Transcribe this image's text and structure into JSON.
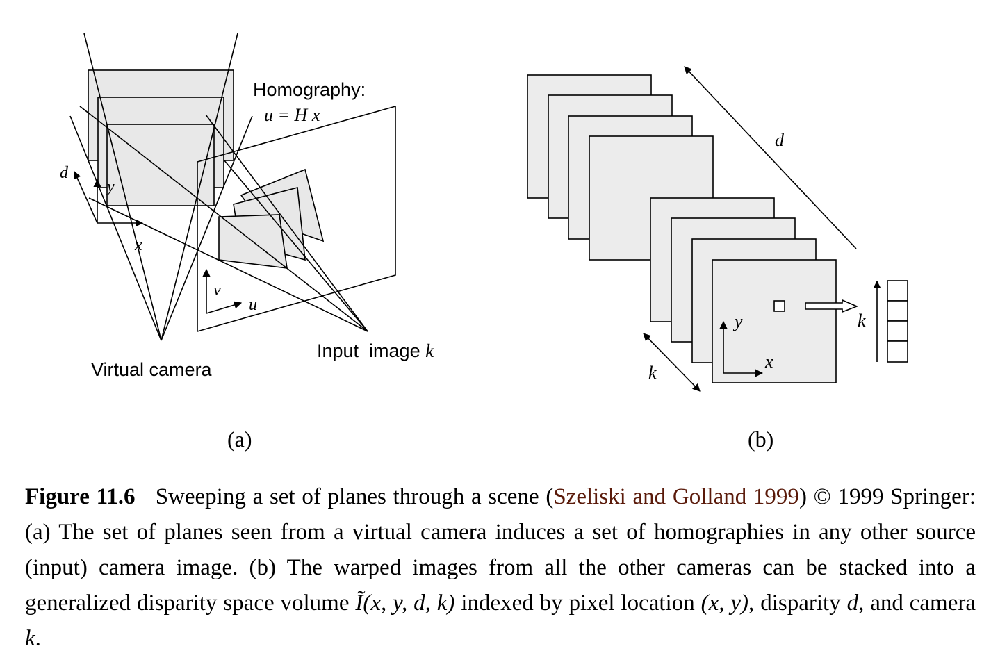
{
  "panel_a": {
    "homography_label": "Homography:",
    "homography_eq": "u = H x",
    "virtual_camera_label": "Virtual camera",
    "input_image_label": "Input  image",
    "input_image_var": "k",
    "axis_d": "d",
    "axis_y": "y",
    "axis_x": "x",
    "axis_v": "v",
    "axis_u": "u",
    "sublabel": "(a)"
  },
  "panel_b": {
    "axis_d": "d",
    "axis_k_bottom": "k",
    "axis_k_right": "k",
    "axis_y": "y",
    "axis_x": "x",
    "sublabel": "(b)"
  },
  "caption": {
    "label": "Figure 11.6",
    "text1": "Sweeping a set of planes through a scene (",
    "citation": "Szeliski and Golland 1999",
    "text2": ") © 1999 Springer: (a) The set of planes seen from a virtual camera induces a set of homographies in any other source (input) camera image. (b) The warped images from all the other cameras can be stacked into a generalized disparity space volume ",
    "volume_symbol": "Ĩ(x, y, d, k)",
    "text3": " indexed by pixel location ",
    "pixel_loc": "(x, y)",
    "text4": ", disparity ",
    "disp_var": "d",
    "text5": ", and camera ",
    "cam_var": "k",
    "text6": "."
  }
}
